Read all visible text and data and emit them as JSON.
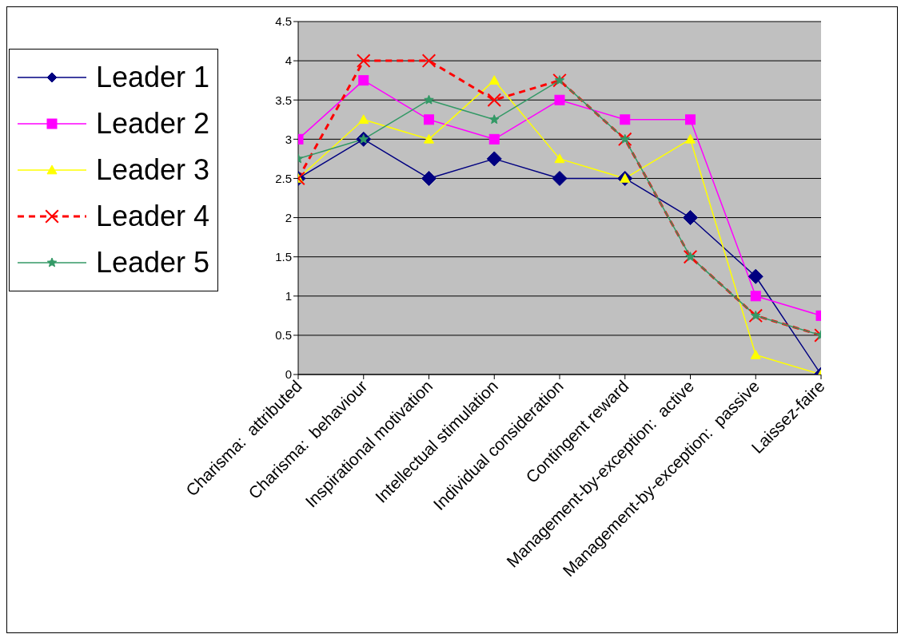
{
  "chart_data": {
    "type": "line",
    "categories": [
      "Charisma:  attributed",
      "Charisma:  behaviour",
      "Inspirational motivation",
      "Intellectual stimulation",
      "Individual consideration",
      "Contingent reward",
      "Management-by-exception:  active",
      "Management-by-exception:  passive",
      "Laissez-faire"
    ],
    "ylim": [
      0,
      4.5
    ],
    "yticks": [
      0,
      0.5,
      1,
      1.5,
      2,
      2.5,
      3,
      3.5,
      4,
      4.5
    ],
    "grid": "y",
    "legend": "top left",
    "series": [
      {
        "name": "Leader 1",
        "color": "#000080",
        "marker": "diamond",
        "line_style": "solid",
        "values": [
          2.5,
          3,
          2.5,
          2.75,
          2.5,
          2.5,
          2,
          1.25,
          0
        ]
      },
      {
        "name": "Leader 2",
        "color": "#ff00ff",
        "marker": "square",
        "line_style": "solid",
        "values": [
          3,
          3.75,
          3.25,
          3,
          3.5,
          3.25,
          3.25,
          1,
          0.75
        ]
      },
      {
        "name": "Leader 3",
        "color": "#ffff00",
        "marker": "triangle",
        "line_style": "solid",
        "values": [
          2.5,
          3.25,
          3,
          3.75,
          2.75,
          2.5,
          3,
          0.25,
          0
        ]
      },
      {
        "name": "Leader 4",
        "color": "#ff0000",
        "marker": "cross",
        "line_style": "dashed",
        "values": [
          2.5,
          4,
          4,
          3.5,
          3.75,
          3,
          1.5,
          0.75,
          0.5
        ]
      },
      {
        "name": "Leader 5",
        "color": "#339966",
        "marker": "star",
        "line_style": "solid",
        "values": [
          2.75,
          3,
          3.5,
          3.25,
          3.75,
          3,
          1.5,
          0.75,
          0.5
        ]
      }
    ]
  }
}
